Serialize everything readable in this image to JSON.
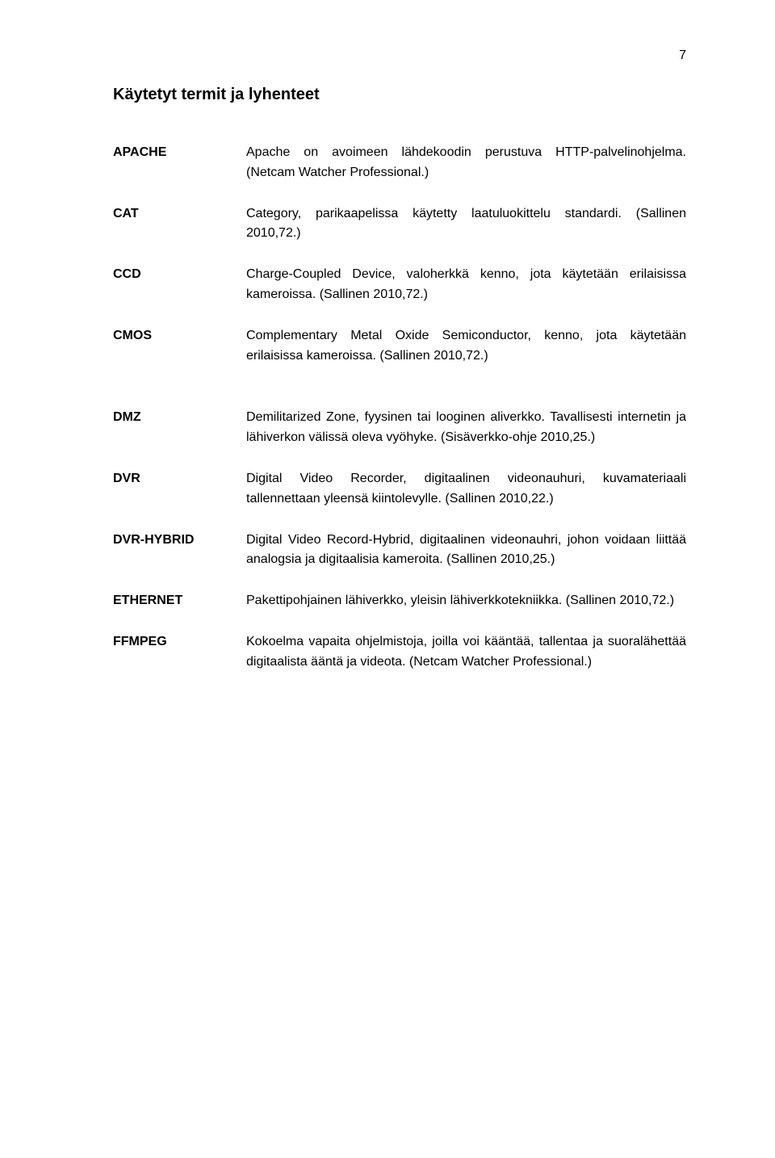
{
  "page_number": "7",
  "heading": "Käytetyt termit ja lyhenteet",
  "terms": [
    {
      "label": "APACHE",
      "def": "Apache on avoimeen lähdekoodin perustuva HTTP-palvelinohjelma. (Netcam Watcher Professional.)"
    },
    {
      "label": "CAT",
      "def": "Category, parikaapelissa käytetty laatuluokittelu standardi. (Sallinen 2010,72.)"
    },
    {
      "label": "CCD",
      "def": "Charge-Coupled Device, valoherkkä kenno, jota käytetään erilaisissa kameroissa. (Sallinen 2010,72.)"
    },
    {
      "label": "CMOS",
      "def": "Complementary Metal Oxide Semiconductor, kenno, jota käytetään erilaisissa kameroissa. (Sallinen 2010,72.)"
    },
    {
      "label": "DMZ",
      "def": "Demilitarized Zone, fyysinen tai looginen aliverkko. Tavallisesti internetin ja lähiverkon välissä oleva vyöhyke. (Sisäverkko-ohje 2010,25.)"
    },
    {
      "label": "DVR",
      "def": "Digital Video Recorder, digitaalinen videonauhuri, kuvamateriaali tallennettaan yleensä kiintolevylle. (Sallinen 2010,22.)"
    },
    {
      "label": "DVR-HYBRID",
      "def": "Digital Video Record-Hybrid, digitaalinen videonauhri, johon voidaan liittää analogsia ja digitaalisia kameroita. (Sallinen 2010,25.)"
    },
    {
      "label": "ETHERNET",
      "def": "Pakettipohjainen lähiverkko, yleisin lähiverkkotekniikka. (Sallinen 2010,72.)"
    },
    {
      "label": "FFMPEG",
      "def": "Kokoelma vapaita ohjelmistoja, joilla voi kääntää, tallentaa ja suoralähettää digitaalista ääntä ja videota. (Netcam Watcher Professional.)"
    }
  ]
}
